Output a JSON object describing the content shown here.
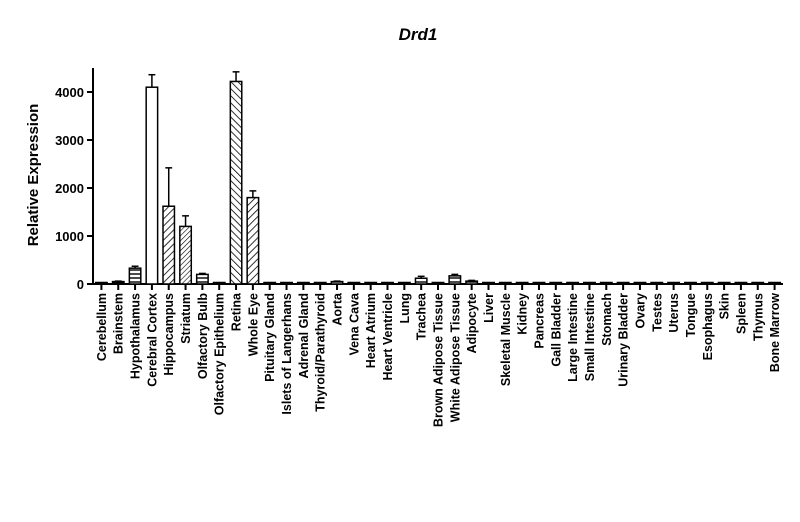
{
  "chart_data": {
    "type": "bar",
    "title": "Drd1",
    "xlabel": "",
    "ylabel": "Relative Expression",
    "ylim": [
      0,
      4500
    ],
    "yticks": [
      0,
      1000,
      2000,
      3000,
      4000
    ],
    "grid": false,
    "legend": "none",
    "categories": [
      "Cerebellum",
      "Brainstem",
      "Hypothalamus",
      "Cerebral Cortex",
      "Hippocampus",
      "Striatum",
      "Olfactory Bulb",
      "Olfactory Epithelium",
      "Retina",
      "Whole Eye",
      "Pituitary Gland",
      "Islets of Langerhans",
      "Adrenal Gland",
      "Thyroid/Parathyroid",
      "Aorta",
      "Vena Cava",
      "Heart Atrium",
      "Heart Ventricle",
      "Lung",
      "Trachea",
      "Brown Adipose Tissue",
      "White Adipose Tissue",
      "Adipocyte",
      "Liver",
      "Skeletal Muscle",
      "Kidney",
      "Pancreas",
      "Gall Bladder",
      "Large Intestine",
      "Small Intestine",
      "Stomach",
      "Urinary Bladder",
      "Ovary",
      "Testes",
      "Uterus",
      "Tongue",
      "Esophagus",
      "Skin",
      "Spleen",
      "Thymus",
      "Bone Marrow"
    ],
    "values": [
      15,
      50,
      330,
      4100,
      1620,
      1200,
      200,
      5,
      4220,
      1800,
      5,
      15,
      5,
      5,
      50,
      20,
      5,
      5,
      5,
      120,
      5,
      170,
      60,
      5,
      5,
      5,
      5,
      5,
      5,
      5,
      5,
      5,
      5,
      5,
      5,
      5,
      5,
      15,
      5,
      5,
      5
    ],
    "errors": [
      5,
      10,
      40,
      260,
      800,
      220,
      20,
      0,
      200,
      140,
      0,
      5,
      0,
      0,
      10,
      5,
      0,
      0,
      0,
      40,
      0,
      30,
      15,
      0,
      0,
      0,
      0,
      0,
      0,
      0,
      0,
      0,
      0,
      0,
      0,
      0,
      0,
      5,
      0,
      0,
      0
    ],
    "patterns": [
      "solid",
      "solid",
      "hstripe",
      "white",
      "dstripe-right",
      "dstripe-right-dense",
      "hstripe",
      "solid",
      "dstripe-left",
      "dstripe-right",
      "solid",
      "solid",
      "solid",
      "solid",
      "hstripe",
      "solid",
      "solid",
      "solid",
      "solid",
      "hstripe",
      "solid",
      "hstripe",
      "hstripe",
      "solid",
      "solid",
      "solid",
      "solid",
      "solid",
      "solid",
      "solid",
      "solid",
      "solid",
      "solid",
      "solid",
      "solid",
      "solid",
      "solid",
      "solid",
      "solid",
      "solid",
      "solid"
    ]
  }
}
